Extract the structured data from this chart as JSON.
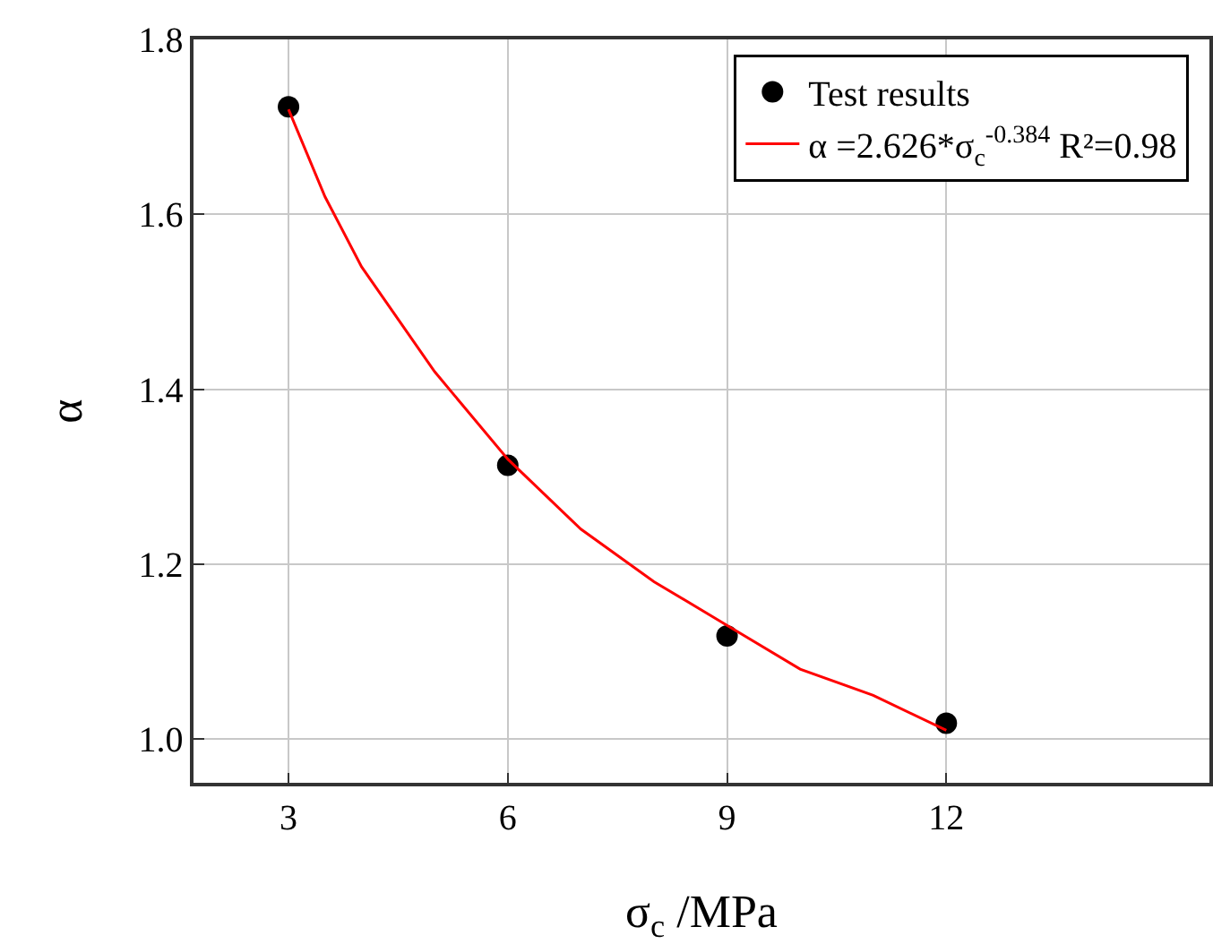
{
  "chart_data": {
    "type": "scatter",
    "xlabel": "σ$_{c}$ /MPa",
    "ylabel": "α",
    "xlim": [
      1.7,
      15.6
    ],
    "xticks": [
      3,
      6,
      9,
      12
    ],
    "ylim": [
      0.95,
      1.8
    ],
    "yticks": [
      {
        "value": 1,
        "label": "1.0"
      },
      1.2,
      1.4,
      1.6,
      1.8
    ],
    "grid": true,
    "legend": "top right",
    "series": [
      {
        "name": "Test results",
        "color": "#000000",
        "marker": "circle",
        "x": [
          3,
          6,
          9,
          12
        ],
        "values": [
          1.723,
          1.313,
          1.118,
          1.018
        ]
      },
      {
        "name": "α =2.626*σ$_{c}$$^{-0.384}$ R²=0.98",
        "type": "line",
        "color": "#ff0000",
        "marker": "none",
        "line_style": "solid",
        "x": [
          3,
          3.5,
          4,
          5,
          6,
          7,
          8,
          9,
          10,
          11,
          12
        ],
        "values": [
          1.72,
          1.62,
          1.54,
          1.42,
          1.32,
          1.24,
          1.18,
          1.13,
          1.08,
          1.05,
          1.01
        ]
      }
    ]
  }
}
